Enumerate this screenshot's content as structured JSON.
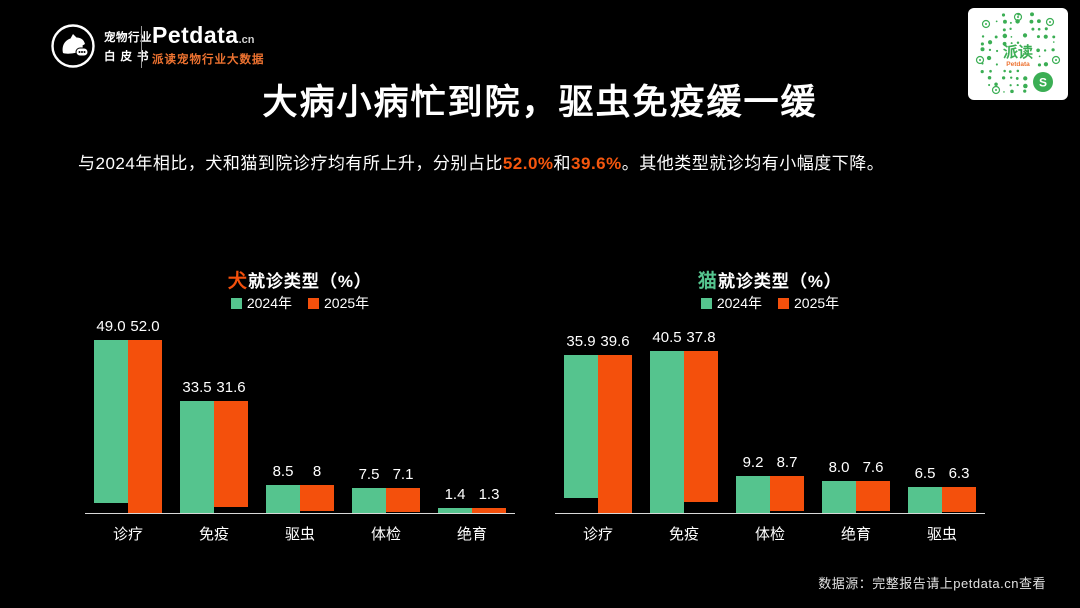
{
  "colors": {
    "bg": "#000000",
    "green": "#55C48E",
    "orange": "#F4500C",
    "subtitle_highlight": "#F4560E",
    "tagline_orange": "#ED7230",
    "qr_green": "#3BAE54",
    "axis": "#D8D8D8"
  },
  "header": {
    "logo": {
      "line1": "宠物行业",
      "line2": "白皮书"
    },
    "brand": {
      "name": "Petdata",
      "domain": ".cn",
      "tagline": "派读宠物行业大数据"
    }
  },
  "qr": {
    "center_text": "派读",
    "sub_text": "Petdata"
  },
  "title": "大病小病忙到院，驱虫免疫缓一缓",
  "subtitle": {
    "pre": "与2024年相比，犬和猫到院诊疗均有所上升，分别占比",
    "v1": "52.0%",
    "mid": "和",
    "v2": "39.6%",
    "post": "。其他类型就诊均有小幅度下降。"
  },
  "footer": {
    "source": "数据源：完整报告请上petdata.cn查看"
  },
  "chart_data": [
    {
      "type": "bar",
      "title_accent": "犬",
      "title_rest": "就诊类型（%）",
      "accent_color": "#F4500C",
      "categories": [
        "诊疗",
        "免疫",
        "驱虫",
        "体检",
        "绝育"
      ],
      "series": [
        {
          "name": "2024年",
          "color": "#55C48E",
          "values": [
            49.0,
            33.5,
            8.5,
            7.5,
            1.4
          ],
          "labels": [
            "49.0",
            "33.5",
            "8.5",
            "7.5",
            "1.4"
          ]
        },
        {
          "name": "2025年",
          "color": "#F4500C",
          "values": [
            52.0,
            31.6,
            8,
            7.1,
            1.3
          ],
          "labels": [
            "52.0",
            "31.6",
            "8",
            "7.1",
            "1.3"
          ]
        }
      ],
      "xlabel": "",
      "ylabel": "",
      "ylim": [
        0,
        60
      ],
      "grid": false,
      "legend_position": "top"
    },
    {
      "type": "bar",
      "title_accent": "猫",
      "title_rest": "就诊类型（%）",
      "accent_color": "#55C48E",
      "categories": [
        "诊疗",
        "免疫",
        "体检",
        "绝育",
        "驱虫"
      ],
      "series": [
        {
          "name": "2024年",
          "color": "#55C48E",
          "values": [
            35.9,
            40.5,
            9.2,
            8.0,
            6.5
          ],
          "labels": [
            "35.9",
            "40.5",
            "9.2",
            "8.0",
            "6.5"
          ]
        },
        {
          "name": "2025年",
          "color": "#F4500C",
          "values": [
            39.6,
            37.8,
            8.7,
            7.6,
            6.3
          ],
          "labels": [
            "39.6",
            "37.8",
            "8.7",
            "7.6",
            "6.3"
          ]
        }
      ],
      "xlabel": "",
      "ylabel": "",
      "ylim": [
        0,
        50
      ],
      "grid": false,
      "legend_position": "top"
    }
  ]
}
